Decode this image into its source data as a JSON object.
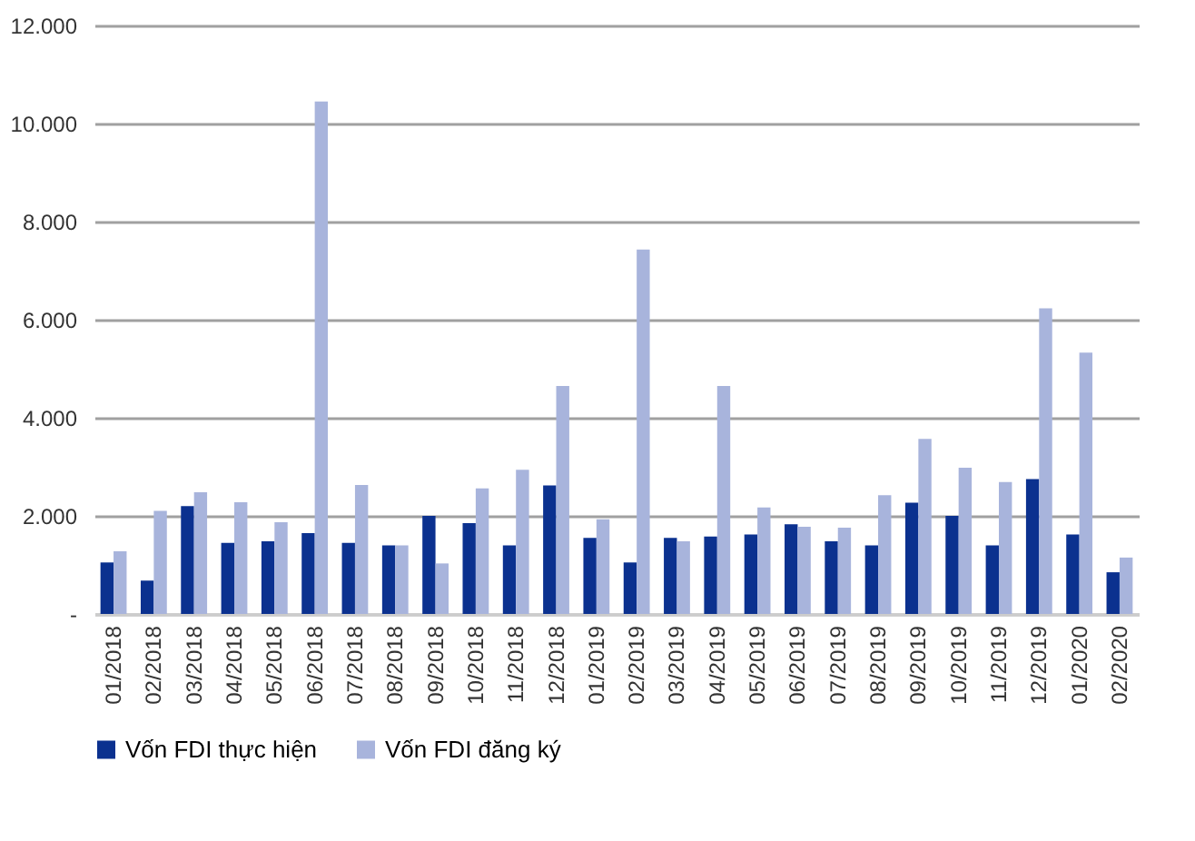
{
  "chart_data": {
    "type": "bar",
    "categories": [
      "01/2018",
      "02/2018",
      "03/2018",
      "04/2018",
      "05/2018",
      "06/2018",
      "07/2018",
      "08/2018",
      "09/2018",
      "10/2018",
      "11/2018",
      "12/2018",
      "01/2019",
      "02/2019",
      "03/2019",
      "04/2019",
      "05/2019",
      "06/2019",
      "07/2019",
      "08/2019",
      "09/2019",
      "10/2019",
      "11/2019",
      "12/2019",
      "01/2020",
      "02/2020"
    ],
    "series": [
      {
        "name": "Vốn FDI thực hiện",
        "color": "#0b318f",
        "values": [
          1050,
          680,
          2200,
          1450,
          1480,
          1650,
          1450,
          1400,
          2000,
          1850,
          1400,
          2620,
          1550,
          1050,
          1550,
          1580,
          1620,
          1830,
          1480,
          1400,
          2270,
          2000,
          1400,
          2750,
          1620,
          850
        ]
      },
      {
        "name": "Vốn FDI đăng ký",
        "color": "#a8b4dc",
        "values": [
          1280,
          2100,
          2480,
          2280,
          1870,
          10450,
          2630,
          1400,
          1030,
          2560,
          2940,
          4650,
          1930,
          7430,
          1480,
          4650,
          2170,
          1780,
          1760,
          2420,
          3570,
          2980,
          2690,
          6230,
          5330,
          1150
        ]
      }
    ],
    "ylim": [
      0,
      12000
    ],
    "yticks": [
      {
        "value": 0,
        "label": "-"
      },
      {
        "value": 2000,
        "label": "2.000"
      },
      {
        "value": 4000,
        "label": "4.000"
      },
      {
        "value": 6000,
        "label": "6.000"
      },
      {
        "value": 8000,
        "label": "8.000"
      },
      {
        "value": 10000,
        "label": "10.000"
      },
      {
        "value": 12000,
        "label": "12.000"
      }
    ],
    "grid": "y",
    "legend": "bottom"
  }
}
